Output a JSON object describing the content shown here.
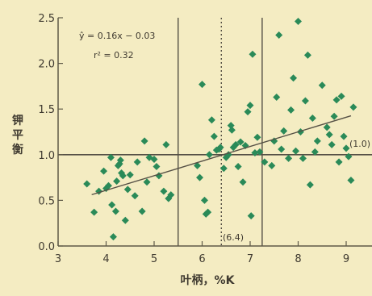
{
  "chart_data": {
    "type": "scatter",
    "title": "",
    "xlabel": "叶柄，%K",
    "ylabel": "钾平衡",
    "xlim": [
      3,
      9.5
    ],
    "ylim": [
      0,
      2.5
    ],
    "x_ticks": [
      3,
      4,
      5,
      6,
      7,
      8,
      9
    ],
    "y_ticks": [
      0.0,
      0.5,
      1.0,
      1.5,
      2.0,
      2.5
    ],
    "x_tick_labels": [
      "3",
      "4",
      "5",
      "6",
      "7",
      "8",
      "9"
    ],
    "y_tick_labels": [
      "0.0",
      "0.5",
      "1.0",
      "1.5",
      "2.0",
      "2.5"
    ],
    "grid": false,
    "equation": "ŷ = 0.16x − 0.03",
    "r_squared": "r² = 0.32",
    "regression": {
      "slope": 0.16,
      "intercept": -0.03,
      "x_range": [
        3.7,
        9.1
      ]
    },
    "reference_lines": {
      "horizontal": {
        "y": 1.0,
        "label": "(1.0)"
      },
      "vertical_dotted": {
        "x": 6.4,
        "label": "(6.4)"
      },
      "vertical_solid": [
        5.5,
        7.25
      ]
    },
    "colors": {
      "background": "#f4ecc2",
      "point": "#2a8a58",
      "axis": "#5f5a48",
      "text": "#3f3a30",
      "line": "#555045"
    },
    "series": [
      {
        "points": [
          [
            3.6,
            0.68
          ],
          [
            3.75,
            0.37
          ],
          [
            3.85,
            0.6
          ],
          [
            3.95,
            0.82
          ],
          [
            4.0,
            0.63
          ],
          [
            4.05,
            0.66
          ],
          [
            4.1,
            0.97
          ],
          [
            4.12,
            0.45
          ],
          [
            4.15,
            0.1
          ],
          [
            4.2,
            0.38
          ],
          [
            4.22,
            0.71
          ],
          [
            4.25,
            0.88
          ],
          [
            4.28,
            0.9
          ],
          [
            4.3,
            0.94
          ],
          [
            4.32,
            0.8
          ],
          [
            4.35,
            0.77
          ],
          [
            4.4,
            0.28
          ],
          [
            4.45,
            0.62
          ],
          [
            4.5,
            0.78
          ],
          [
            4.6,
            0.55
          ],
          [
            4.65,
            0.92
          ],
          [
            4.75,
            0.38
          ],
          [
            4.8,
            1.15
          ],
          [
            4.85,
            0.7
          ],
          [
            4.9,
            0.97
          ],
          [
            5.0,
            0.95
          ],
          [
            5.05,
            0.87
          ],
          [
            5.1,
            0.77
          ],
          [
            5.2,
            0.6
          ],
          [
            5.25,
            1.11
          ],
          [
            5.3,
            0.52
          ],
          [
            5.35,
            0.56
          ],
          [
            5.9,
            0.88
          ],
          [
            5.95,
            0.75
          ],
          [
            6.0,
            1.77
          ],
          [
            6.05,
            0.5
          ],
          [
            6.08,
            0.35
          ],
          [
            6.12,
            0.37
          ],
          [
            6.15,
            1.0
          ],
          [
            6.2,
            1.38
          ],
          [
            6.25,
            1.2
          ],
          [
            6.3,
            1.05
          ],
          [
            6.35,
            1.06
          ],
          [
            6.38,
            1.08
          ],
          [
            6.45,
            0.85
          ],
          [
            6.5,
            0.97
          ],
          [
            6.55,
            1.0
          ],
          [
            6.6,
            1.32
          ],
          [
            6.62,
            1.27
          ],
          [
            6.65,
            1.08
          ],
          [
            6.7,
            1.11
          ],
          [
            6.75,
            0.87
          ],
          [
            6.8,
            1.14
          ],
          [
            6.85,
            0.7
          ],
          [
            6.9,
            1.1
          ],
          [
            6.95,
            1.47
          ],
          [
            7.0,
            1.54
          ],
          [
            7.02,
            0.33
          ],
          [
            7.05,
            2.1
          ],
          [
            7.1,
            1.02
          ],
          [
            7.15,
            1.19
          ],
          [
            7.2,
            1.03
          ],
          [
            7.3,
            0.92
          ],
          [
            7.45,
            0.88
          ],
          [
            7.5,
            1.15
          ],
          [
            7.55,
            1.63
          ],
          [
            7.6,
            2.31
          ],
          [
            7.65,
            1.06
          ],
          [
            7.7,
            1.26
          ],
          [
            7.8,
            0.96
          ],
          [
            7.85,
            1.49
          ],
          [
            7.9,
            1.84
          ],
          [
            7.95,
            1.04
          ],
          [
            8.0,
            2.46
          ],
          [
            8.05,
            1.25
          ],
          [
            8.1,
            0.96
          ],
          [
            8.15,
            1.59
          ],
          [
            8.2,
            2.09
          ],
          [
            8.25,
            0.67
          ],
          [
            8.3,
            1.4
          ],
          [
            8.35,
            1.03
          ],
          [
            8.4,
            1.15
          ],
          [
            8.5,
            1.76
          ],
          [
            8.6,
            1.3
          ],
          [
            8.65,
            1.22
          ],
          [
            8.7,
            1.11
          ],
          [
            8.75,
            1.42
          ],
          [
            8.8,
            1.6
          ],
          [
            8.85,
            0.92
          ],
          [
            8.9,
            1.64
          ],
          [
            8.95,
            1.2
          ],
          [
            9.0,
            1.07
          ],
          [
            9.05,
            0.98
          ],
          [
            9.1,
            0.72
          ],
          [
            9.15,
            1.52
          ]
        ]
      }
    ]
  }
}
